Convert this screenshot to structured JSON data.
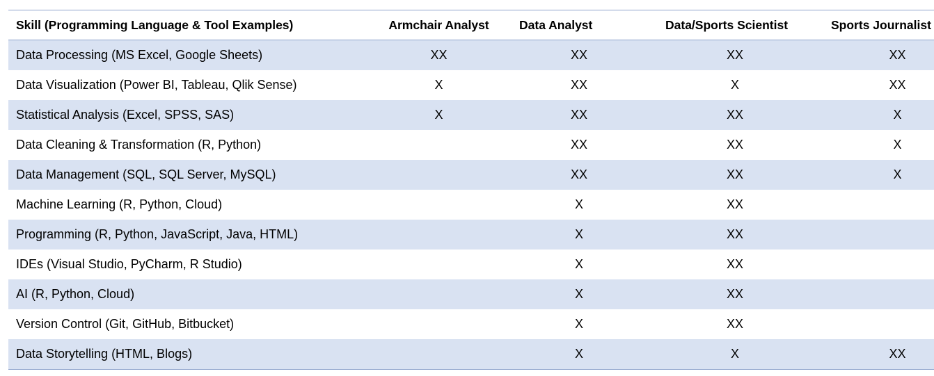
{
  "table": {
    "columns": [
      "Skill (Programming Language & Tool Examples)",
      "Armchair Analyst",
      "Data Analyst",
      "Data/Sports Scientist",
      "Sports Journalist"
    ],
    "rows": [
      [
        "Data Processing (MS Excel, Google Sheets)",
        "XX",
        "XX",
        "XX",
        "XX"
      ],
      [
        "Data Visualization (Power BI, Tableau, Qlik Sense)",
        "X",
        "XX",
        "X",
        "XX"
      ],
      [
        "Statistical Analysis (Excel, SPSS, SAS)",
        "X",
        "XX",
        "XX",
        "X"
      ],
      [
        "Data Cleaning & Transformation (R, Python)",
        "",
        "XX",
        "XX",
        "X"
      ],
      [
        "Data Management (SQL, SQL Server, MySQL)",
        "",
        "XX",
        "XX",
        "X"
      ],
      [
        "Machine Learning (R, Python, Cloud)",
        "",
        "X",
        "XX",
        ""
      ],
      [
        "Programming (R, Python, JavaScript, Java, HTML)",
        "",
        "X",
        "XX",
        ""
      ],
      [
        "IDEs (Visual Studio, PyCharm, R Studio)",
        "",
        "X",
        "XX",
        ""
      ],
      [
        "AI (R, Python, Cloud)",
        "",
        "X",
        "XX",
        ""
      ],
      [
        "Version Control (Git, GitHub, Bitbucket)",
        "",
        "X",
        "XX",
        ""
      ],
      [
        "Data Storytelling (HTML, Blogs)",
        "",
        "X",
        "X",
        "XX"
      ]
    ]
  },
  "colors": {
    "band": "#d9e2f2",
    "rule": "#8ea3cc"
  }
}
